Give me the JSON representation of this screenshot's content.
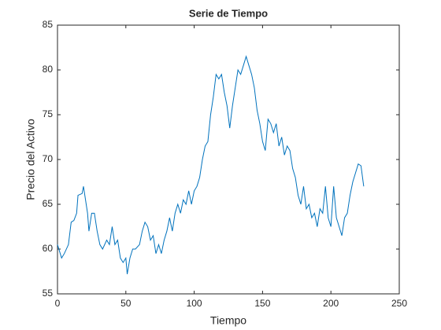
{
  "chart_data": {
    "type": "line",
    "title": "Serie de Tiempo",
    "xlabel": "Tiempo",
    "ylabel": "Precio del Activo",
    "x": [
      0,
      3,
      5,
      8,
      10,
      12,
      14,
      15,
      18,
      19,
      20,
      22,
      23,
      25,
      27,
      29,
      31,
      33,
      36,
      38,
      40,
      42,
      44,
      46,
      48,
      50,
      51,
      53,
      55,
      57,
      60,
      62,
      64,
      66,
      68,
      70,
      72,
      74,
      76,
      78,
      80,
      82,
      84,
      86,
      88,
      90,
      92,
      94,
      96,
      98,
      100,
      102,
      104,
      106,
      108,
      110,
      112,
      114,
      116,
      118,
      120,
      122,
      124,
      126,
      128,
      130,
      132,
      134,
      136,
      138,
      140,
      142,
      144,
      146,
      148,
      150,
      152,
      154,
      156,
      158,
      160,
      162,
      164,
      166,
      168,
      170,
      172,
      174,
      176,
      178,
      180,
      182,
      184,
      186,
      188,
      190,
      192,
      194,
      196,
      198,
      200,
      202,
      204,
      206,
      208,
      210,
      212,
      214,
      216,
      218,
      220,
      222,
      224
    ],
    "series": [
      {
        "name": "Precio",
        "color": "#0072bd",
        "values": [
          60.5,
          59,
          59.5,
          60.5,
          63,
          63.2,
          64,
          66,
          66.2,
          67,
          66,
          64,
          62,
          64,
          64,
          62,
          60.5,
          60,
          61,
          60.5,
          62.5,
          60.5,
          61,
          59,
          58.5,
          59,
          57.2,
          59,
          60,
          60,
          60.5,
          62,
          63,
          62.5,
          61,
          61.5,
          59.5,
          60.5,
          59.5,
          61,
          62,
          63.5,
          62,
          64,
          65,
          64,
          65.5,
          65,
          66.5,
          65,
          66.5,
          67,
          68,
          70,
          71.5,
          72,
          75,
          77,
          79.5,
          79,
          79.5,
          77.5,
          76,
          73.5,
          76,
          78,
          80,
          79.5,
          80.5,
          81.5,
          80.5,
          79.5,
          78,
          75.5,
          74,
          72,
          71,
          74.5,
          74,
          73,
          74,
          71.5,
          72.5,
          70.5,
          71.5,
          71,
          69,
          68,
          66,
          65,
          67,
          64.5,
          65,
          63.5,
          64,
          62.5,
          64.5,
          64,
          67,
          63.5,
          62.5,
          67,
          63.5,
          62.5,
          61.5,
          63.5,
          64,
          66,
          67.5,
          68.5,
          69.5,
          69.3,
          67
        ]
      }
    ],
    "xlim": [
      0,
      250
    ],
    "xticks": [
      0,
      50,
      100,
      150,
      200,
      250
    ],
    "ylim": [
      55,
      85
    ],
    "yticks": [
      55,
      60,
      65,
      70,
      75,
      80,
      85
    ]
  }
}
